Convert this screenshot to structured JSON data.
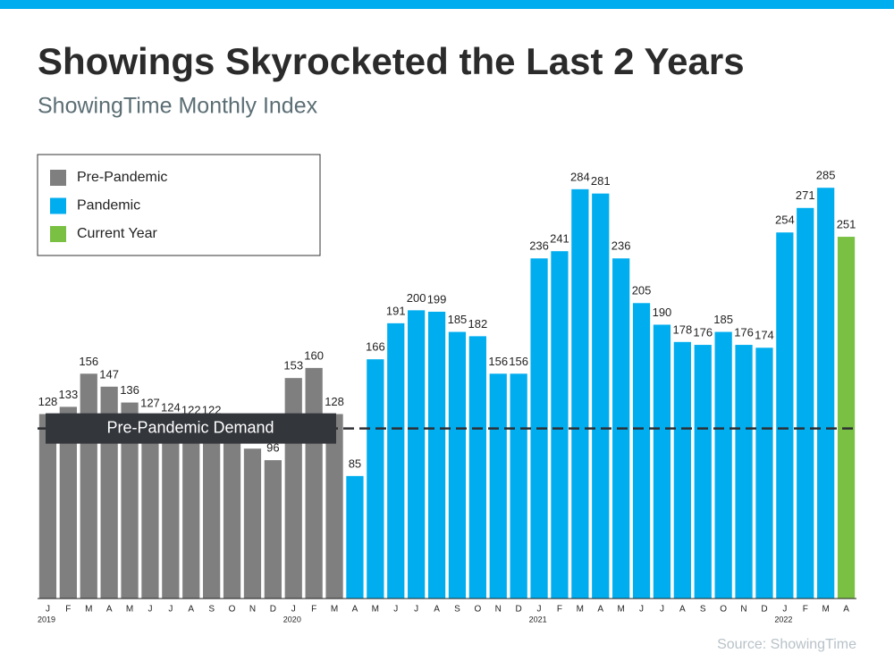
{
  "chart_data": {
    "type": "bar",
    "title": "Showings Skyrocketed the Last 2 Years",
    "subtitle": "ShowingTime Monthly Index",
    "source": "Source: ShowingTime",
    "categories": [
      "J",
      "F",
      "M",
      "A",
      "M",
      "J",
      "J",
      "A",
      "S",
      "O",
      "N",
      "D",
      "J",
      "F",
      "M",
      "A",
      "M",
      "J",
      "J",
      "A",
      "S",
      "O",
      "N",
      "D",
      "J",
      "F",
      "M",
      "A",
      "M",
      "J",
      "J",
      "A",
      "S",
      "O",
      "N",
      "D",
      "J",
      "F",
      "M",
      "A"
    ],
    "years": [
      "2019",
      null,
      null,
      null,
      null,
      null,
      null,
      null,
      null,
      null,
      null,
      null,
      "2020",
      null,
      null,
      null,
      null,
      null,
      null,
      null,
      null,
      null,
      null,
      null,
      "2021",
      null,
      null,
      null,
      null,
      null,
      null,
      null,
      null,
      null,
      null,
      null,
      "2022",
      null,
      null,
      null
    ],
    "series": [
      {
        "name": "Pre-Pandemic",
        "color": "#7f7f7f",
        "values": [
          128,
          133,
          156,
          147,
          136,
          127,
          124,
          122,
          122,
          115,
          104,
          96,
          153,
          160,
          128,
          null,
          null,
          null,
          null,
          null,
          null,
          null,
          null,
          null,
          null,
          null,
          null,
          null,
          null,
          null,
          null,
          null,
          null,
          null,
          null,
          null,
          null,
          null,
          null,
          null
        ]
      },
      {
        "name": "Pandemic",
        "color": "#00aeef",
        "values": [
          null,
          null,
          null,
          null,
          null,
          null,
          null,
          null,
          null,
          null,
          null,
          null,
          null,
          null,
          null,
          85,
          166,
          191,
          200,
          199,
          185,
          182,
          156,
          156,
          236,
          241,
          284,
          281,
          236,
          205,
          190,
          178,
          176,
          185,
          176,
          174,
          254,
          271,
          285,
          null
        ]
      },
      {
        "name": "Current Year",
        "color": "#7ac143",
        "values": [
          null,
          null,
          null,
          null,
          null,
          null,
          null,
          null,
          null,
          null,
          null,
          null,
          null,
          null,
          null,
          null,
          null,
          null,
          null,
          null,
          null,
          null,
          null,
          null,
          null,
          null,
          null,
          null,
          null,
          null,
          null,
          null,
          null,
          null,
          null,
          null,
          null,
          null,
          null,
          251
        ]
      }
    ],
    "reference_line": {
      "value": 118,
      "label": "Pre-Pandemic Demand"
    },
    "ylim": [
      0,
      300
    ]
  }
}
